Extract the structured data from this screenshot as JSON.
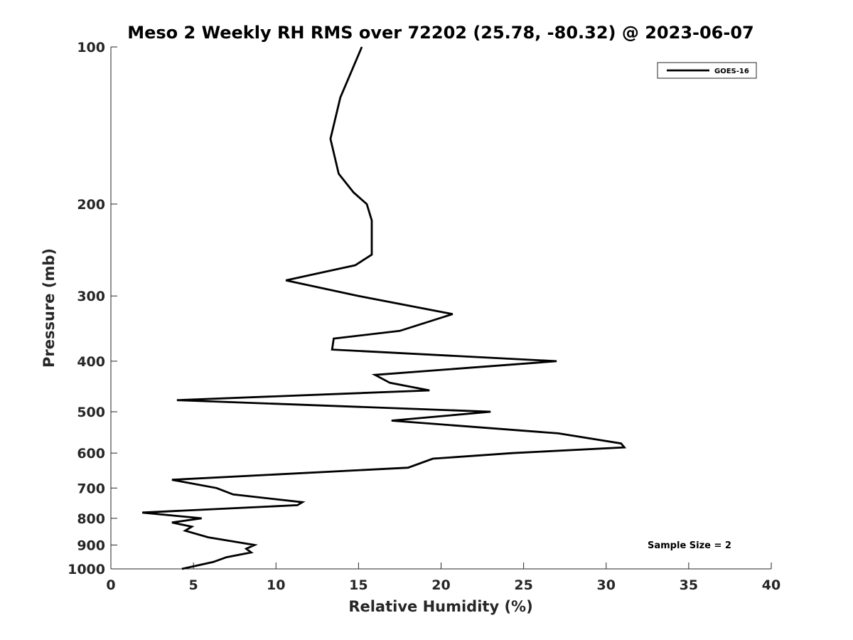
{
  "chart_data": {
    "type": "line",
    "title": "Meso 2 Weekly RH RMS over 72202 (25.78, -80.32) @ 2023-06-07",
    "xlabel": "Relative Humidity (%)",
    "ylabel": "Pressure (mb)",
    "xlim": [
      0,
      40
    ],
    "ylim": [
      100,
      1000
    ],
    "yscale": "log",
    "y_reversed": true,
    "xticks": [
      0,
      5,
      10,
      15,
      20,
      25,
      30,
      35,
      40
    ],
    "xtick_labels": [
      "0",
      "5",
      "10",
      "15",
      "20",
      "25",
      "30",
      "35",
      "40"
    ],
    "yticks": [
      100,
      200,
      300,
      400,
      500,
      600,
      700,
      800,
      900,
      1000
    ],
    "ytick_labels": [
      "100",
      "200",
      "300",
      "400",
      "500",
      "600",
      "700",
      "800",
      "900",
      "1000"
    ],
    "grid": false,
    "legend_position": "top-right",
    "annotation": "Sample Size = 2",
    "series": [
      {
        "name": "GOES-16",
        "color": "#000000",
        "points": [
          [
            15.2,
            100
          ],
          [
            13.9,
            125
          ],
          [
            13.3,
            150
          ],
          [
            13.8,
            175
          ],
          [
            14.7,
            190
          ],
          [
            15.5,
            200
          ],
          [
            15.8,
            215
          ],
          [
            15.8,
            250
          ],
          [
            14.8,
            262
          ],
          [
            10.6,
            280
          ],
          [
            15.0,
            300
          ],
          [
            20.7,
            325
          ],
          [
            17.5,
            350
          ],
          [
            13.5,
            362
          ],
          [
            13.4,
            380
          ],
          [
            27.0,
            400
          ],
          [
            16.0,
            425
          ],
          [
            16.9,
            440
          ],
          [
            19.3,
            455
          ],
          [
            4.0,
            475
          ],
          [
            23.0,
            500
          ],
          [
            17.0,
            520
          ],
          [
            27.1,
            550
          ],
          [
            30.9,
            575
          ],
          [
            31.1,
            585
          ],
          [
            24.3,
            600
          ],
          [
            19.5,
            615
          ],
          [
            18.0,
            640
          ],
          [
            3.7,
            675
          ],
          [
            6.4,
            700
          ],
          [
            7.4,
            720
          ],
          [
            11.6,
            745
          ],
          [
            11.3,
            755
          ],
          [
            1.9,
            780
          ],
          [
            5.5,
            800
          ],
          [
            3.7,
            815
          ],
          [
            4.9,
            830
          ],
          [
            4.5,
            845
          ],
          [
            5.9,
            870
          ],
          [
            8.7,
            900
          ],
          [
            8.2,
            915
          ],
          [
            8.5,
            930
          ],
          [
            7.0,
            950
          ],
          [
            6.2,
            970
          ],
          [
            4.3,
            1000
          ]
        ]
      }
    ]
  }
}
